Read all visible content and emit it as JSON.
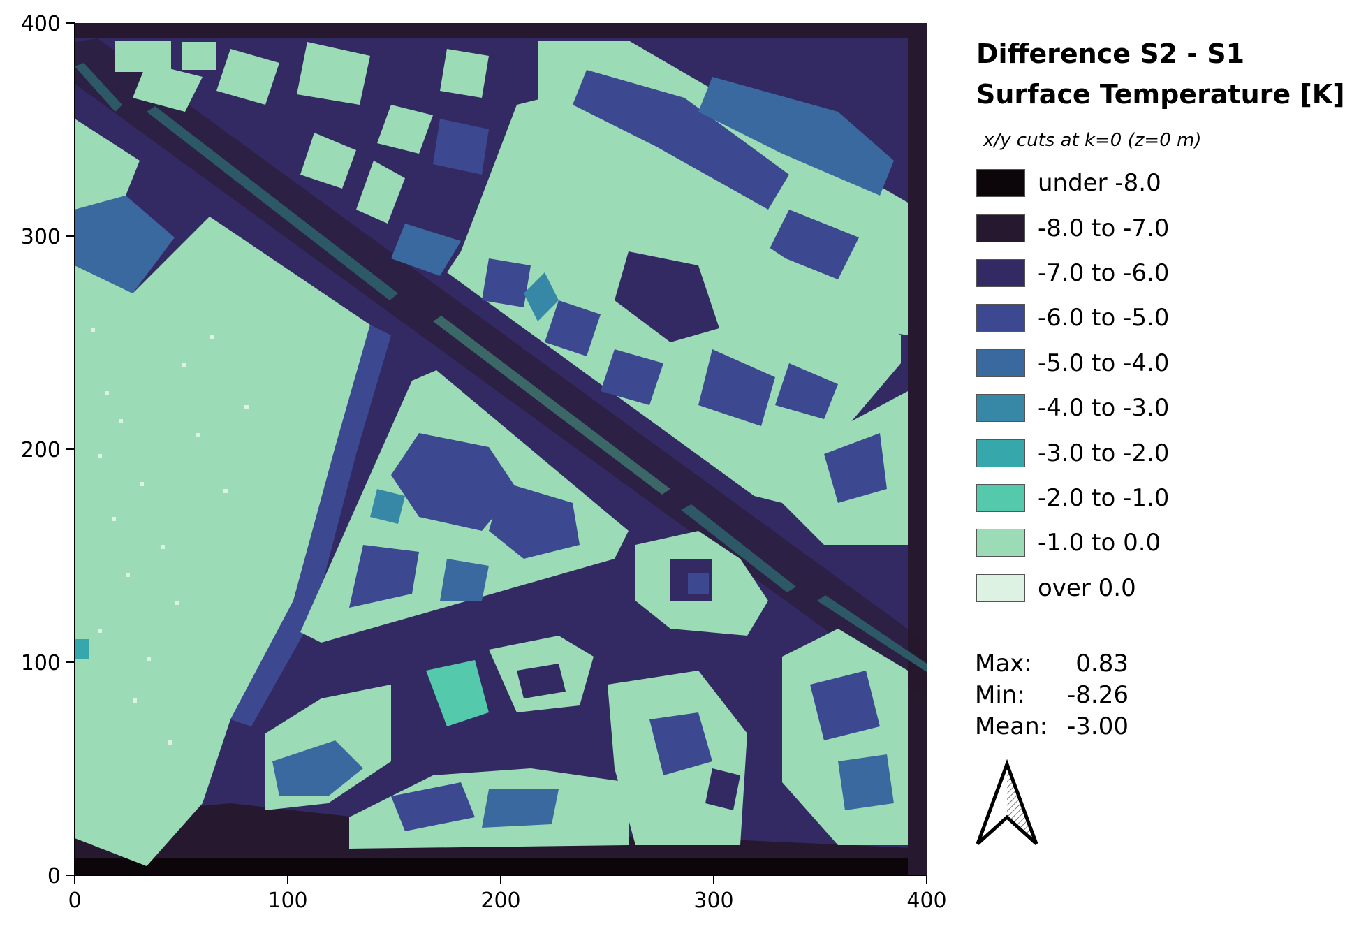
{
  "legend": {
    "title_line1": "Difference S2 - S1",
    "title_line2": "Surface Temperature [K]",
    "subtitle": "x/y cuts at k=0 (z=0 m)",
    "items": [
      {
        "label": "under -8.0",
        "color": "#0c0509"
      },
      {
        "label": "-8.0 to -7.0",
        "color": "#26182e"
      },
      {
        "label": "-7.0 to -6.0",
        "color": "#342a63"
      },
      {
        "label": "-6.0 to -5.0",
        "color": "#3c4890"
      },
      {
        "label": "-5.0 to -4.0",
        "color": "#3a69a0"
      },
      {
        "label": "-4.0 to -3.0",
        "color": "#3787a6"
      },
      {
        "label": "-3.0 to -2.0",
        "color": "#36a8ac"
      },
      {
        "label": "-2.0 to -1.0",
        "color": "#54c9ab"
      },
      {
        "label": "-1.0 to 0.0",
        "color": "#9bdcb7"
      },
      {
        "label": "over 0.0",
        "color": "#ddf2e3"
      }
    ]
  },
  "stats": {
    "max_label": "Max:",
    "max_value": "0.83",
    "min_label": "Min:",
    "min_value": "-8.26",
    "mean_label": "Mean:",
    "mean_value": "-3.00"
  },
  "axes": {
    "xlim": [
      0,
      400
    ],
    "ylim": [
      0,
      400
    ],
    "x_ticks": [
      "0",
      "100",
      "200",
      "300",
      "400"
    ],
    "y_ticks": [
      "0",
      "100",
      "200",
      "300",
      "400"
    ]
  },
  "map": {
    "type": "raster heatmap of surface temperature difference with building footprints and streets",
    "north_arrow": "north-arrow-icon"
  }
}
